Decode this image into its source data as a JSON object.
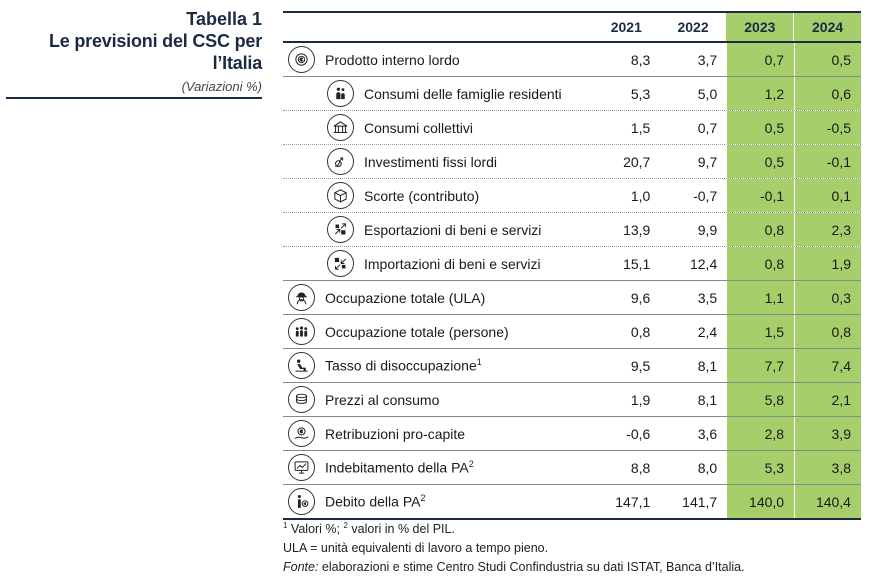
{
  "caption": {
    "label": "Tabella 1",
    "title": "Le previsioni del CSC per l’Italia",
    "subtitle": "(Variazioni %)"
  },
  "columns": [
    "2021",
    "2022",
    "2023",
    "2024"
  ],
  "colors": {
    "forecast_column": "#a6cf6b",
    "rule": "#1b2a44"
  },
  "rows": [
    {
      "label": "Prodotto interno lordo",
      "sup": "",
      "icon": "gdp-coin-icon",
      "values": [
        "8,3",
        "3,7",
        "0,7",
        "0,5"
      ]
    },
    {
      "label": "Consumi delle famiglie residenti",
      "sup": "",
      "icon": "family-icon",
      "values": [
        "5,3",
        "5,0",
        "1,2",
        "0,6"
      ]
    },
    {
      "label": "Consumi collettivi",
      "sup": "",
      "icon": "public-building-icon",
      "values": [
        "1,5",
        "0,7",
        "0,5",
        "-0,5"
      ]
    },
    {
      "label": "Investimenti fissi lordi",
      "sup": "",
      "icon": "investment-icon",
      "values": [
        "20,7",
        "9,7",
        "0,5",
        "-0,1"
      ]
    },
    {
      "label": "Scorte (contributo)",
      "sup": "",
      "icon": "box-icon",
      "values": [
        "1,0",
        "-0,7",
        "-0,1",
        "0,1"
      ]
    },
    {
      "label": "Esportazioni di beni e servizi",
      "sup": "",
      "icon": "export-icon",
      "values": [
        "13,9",
        "9,9",
        "0,8",
        "2,3"
      ]
    },
    {
      "label": "Importazioni di beni e servizi",
      "sup": "",
      "icon": "import-icon",
      "values": [
        "15,1",
        "12,4",
        "0,8",
        "1,9"
      ]
    },
    {
      "label": "Occupazione totale (ULA)",
      "sup": "",
      "icon": "worker-helmet-icon",
      "values": [
        "9,6",
        "3,5",
        "1,1",
        "0,3"
      ]
    },
    {
      "label": "Occupazione totale (persone)",
      "sup": "",
      "icon": "people-group-icon",
      "values": [
        "0,8",
        "2,4",
        "1,5",
        "0,8"
      ]
    },
    {
      "label": "Tasso di disoccupazione",
      "sup": "1",
      "icon": "unemployed-person-icon",
      "values": [
        "9,5",
        "8,1",
        "7,7",
        "7,4"
      ]
    },
    {
      "label": "Prezzi al consumo",
      "sup": "",
      "icon": "coin-stack-icon",
      "values": [
        "1,9",
        "8,1",
        "5,8",
        "2,1"
      ]
    },
    {
      "label": "Retribuzioni pro-capite",
      "sup": "",
      "icon": "salary-hand-icon",
      "values": [
        "-0,6",
        "3,6",
        "2,8",
        "3,9"
      ]
    },
    {
      "label": "Indebitamento della PA",
      "sup": "2",
      "icon": "monitor-chart-icon",
      "values": [
        "8,8",
        "8,0",
        "5,3",
        "3,8"
      ]
    },
    {
      "label": "Debito della PA",
      "sup": "2",
      "icon": "debt-person-icon",
      "values": [
        "147,1",
        "141,7",
        "140,0",
        "140,4"
      ]
    }
  ],
  "notes": {
    "line1_sup1": "1",
    "line1_a": " Valori %; ",
    "line1_sup2": "2",
    "line1_b": " valori in % del PIL.",
    "line2": "ULA = unità equivalenti di lavoro a tempo pieno.",
    "line3_em": "Fonte:",
    "line3": " elaborazioni e stime Centro Studi Confindustria su dati ISTAT, Banca d’Italia."
  }
}
